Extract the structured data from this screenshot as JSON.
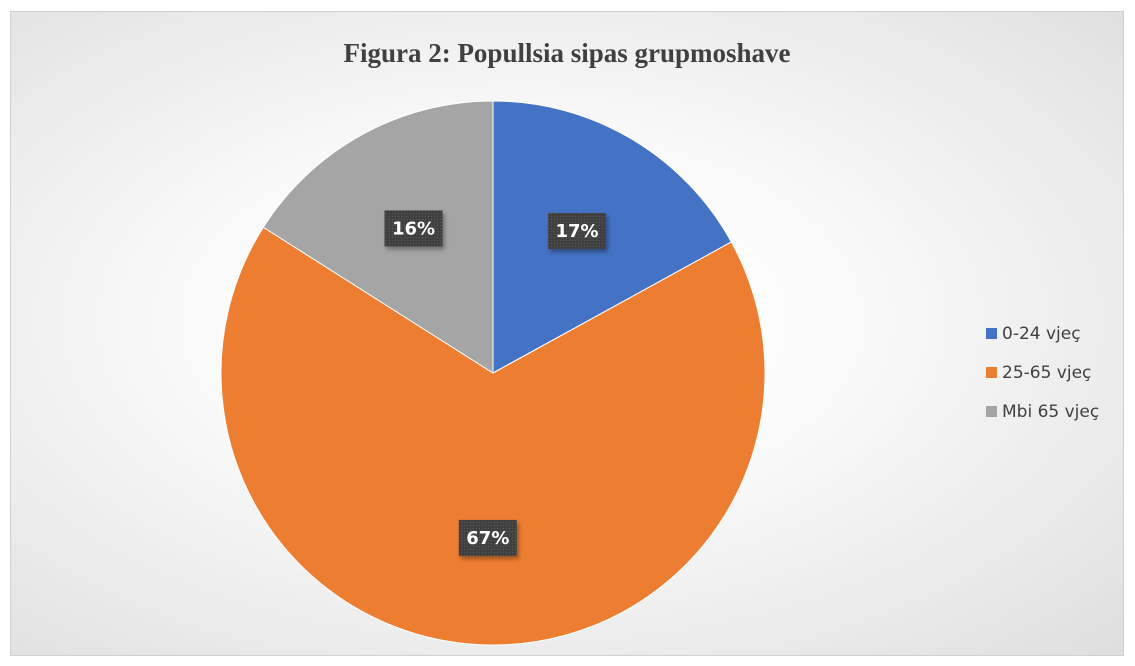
{
  "chart_data": {
    "type": "pie",
    "title": "Figura 2: Popullsia sipas grupmoshave",
    "categories": [
      "0-24 vjeç",
      "25-65 vjeç",
      "Mbi 65 vjeç"
    ],
    "values": [
      17,
      67,
      16
    ],
    "data_labels": [
      "17%",
      "67%",
      "16%"
    ],
    "colors": [
      "#4472C4",
      "#ED7D31",
      "#A5A5A5"
    ],
    "legend_position": "right",
    "start_angle_deg": 0,
    "direction": "clockwise"
  }
}
